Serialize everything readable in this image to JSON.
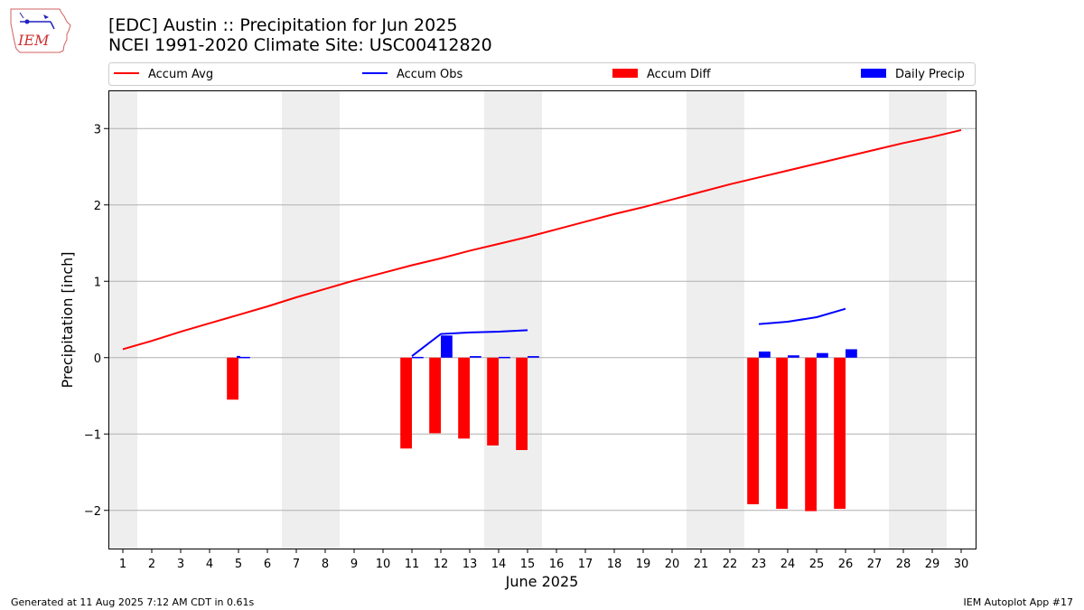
{
  "logo_text": "IEM",
  "title": "[EDC] Austin :: Precipitation for Jun 2025",
  "subtitle": "NCEI 1991-2020 Climate Site: USC00412820",
  "footer_left": "Generated at 11 Aug 2025 7:12 AM CDT in 0.61s",
  "footer_right": "IEM Autoplot App #17",
  "colors": {
    "avg": "#ff0000",
    "obs": "#0000ff",
    "diff": "#ff0000",
    "daily": "#0000ff",
    "weekend": "#eeeeee",
    "grid": "#b0b0b0"
  },
  "chart_data": {
    "type": "bar",
    "xlabel": "June 2025",
    "ylabel": "Precipitation [inch]",
    "xlim": [
      0.5,
      30.5
    ],
    "ylim": [
      -2.5,
      3.5
    ],
    "yticks": [
      -2,
      -1,
      0,
      1,
      2,
      3
    ],
    "ytick_labels": [
      "−2",
      "−1",
      "0",
      "1",
      "2",
      "3"
    ],
    "days": [
      1,
      2,
      3,
      4,
      5,
      6,
      7,
      8,
      9,
      10,
      11,
      12,
      13,
      14,
      15,
      16,
      17,
      18,
      19,
      20,
      21,
      22,
      23,
      24,
      25,
      26,
      27,
      28,
      29,
      30
    ],
    "weekend_spans": [
      [
        0.5,
        1.5
      ],
      [
        6.5,
        8.5
      ],
      [
        13.5,
        15.5
      ],
      [
        20.5,
        22.5
      ],
      [
        27.5,
        29.5
      ]
    ],
    "grid": "y",
    "legend_position": "top",
    "legend": [
      "Accum Avg",
      "Accum Obs",
      "Accum Diff",
      "Daily Precip"
    ],
    "series": [
      {
        "name": "Accum Avg",
        "kind": "line",
        "x": [
          1,
          2,
          3,
          4,
          5,
          6,
          7,
          8,
          9,
          10,
          11,
          12,
          13,
          14,
          15,
          16,
          17,
          18,
          19,
          20,
          21,
          22,
          23,
          24,
          25,
          26,
          27,
          28,
          29,
          30
        ],
        "values": [
          0.11,
          0.22,
          0.34,
          0.45,
          0.56,
          0.67,
          0.79,
          0.9,
          1.01,
          1.11,
          1.21,
          1.3,
          1.4,
          1.49,
          1.58,
          1.68,
          1.78,
          1.88,
          1.97,
          2.07,
          2.17,
          2.27,
          2.36,
          2.45,
          2.54,
          2.63,
          2.72,
          2.81,
          2.89,
          2.98
        ]
      },
      {
        "name": "Accum Obs",
        "kind": "line",
        "segments": [
          {
            "x": [
              5
            ],
            "values": [
              0.01
            ]
          },
          {
            "x": [
              11,
              12,
              13,
              14,
              15
            ],
            "values": [
              0.02,
              0.31,
              0.33,
              0.34,
              0.36
            ]
          },
          {
            "x": [
              23,
              24,
              25,
              26
            ],
            "values": [
              0.44,
              0.47,
              0.53,
              0.64
            ]
          }
        ]
      },
      {
        "name": "Accum Diff",
        "kind": "bar",
        "x": [
          5,
          11,
          12,
          13,
          14,
          15,
          23,
          24,
          25,
          26
        ],
        "values": [
          -0.55,
          -1.19,
          -0.99,
          -1.06,
          -1.15,
          -1.21,
          -1.92,
          -1.98,
          -2.01,
          -1.98
        ]
      },
      {
        "name": "Daily Precip",
        "kind": "bar",
        "x": [
          5,
          11,
          12,
          13,
          14,
          15,
          23,
          24,
          25,
          26
        ],
        "values": [
          0.01,
          0.01,
          0.29,
          0.02,
          0.01,
          0.02,
          0.08,
          0.03,
          0.06,
          0.11
        ]
      }
    ]
  }
}
